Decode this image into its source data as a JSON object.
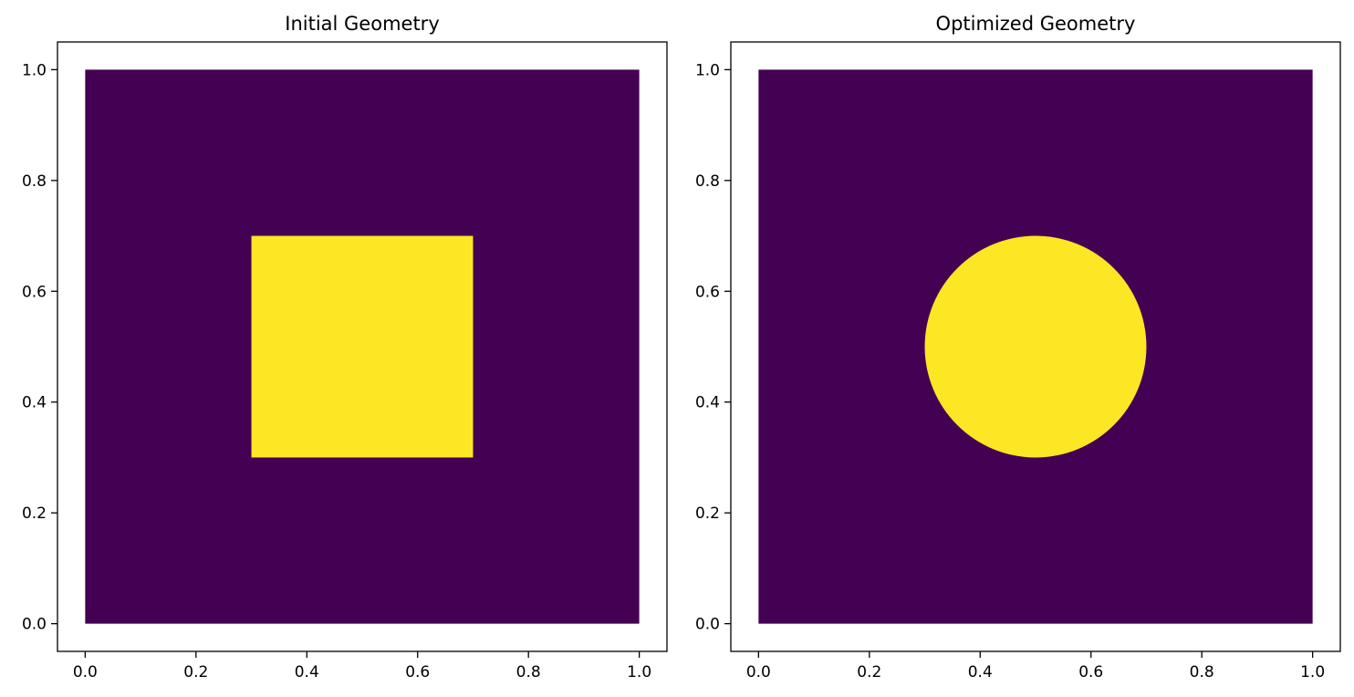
{
  "chart_data": [
    {
      "type": "heatmap",
      "title": "Initial Geometry",
      "xlim": [
        -0.05,
        1.05
      ],
      "ylim": [
        -0.05,
        1.05
      ],
      "extent": [
        0.0,
        1.0,
        0.0,
        1.0
      ],
      "xticks": [
        0.0,
        0.2,
        0.4,
        0.6,
        0.8,
        1.0
      ],
      "yticks": [
        0.0,
        0.2,
        0.4,
        0.6,
        0.8,
        1.0
      ],
      "xtick_labels": [
        "0.0",
        "0.2",
        "0.4",
        "0.6",
        "0.8",
        "1.0"
      ],
      "ytick_labels": [
        "0.0",
        "0.2",
        "0.4",
        "0.6",
        "0.8",
        "1.0"
      ],
      "background_value": 0,
      "shape": {
        "kind": "square",
        "x_range": [
          0.3,
          0.7
        ],
        "y_range": [
          0.3,
          0.7
        ],
        "value": 1
      },
      "colors": {
        "low": "#440154",
        "high": "#fde725"
      }
    },
    {
      "type": "heatmap",
      "title": "Optimized Geometry",
      "xlim": [
        -0.05,
        1.05
      ],
      "ylim": [
        -0.05,
        1.05
      ],
      "extent": [
        0.0,
        1.0,
        0.0,
        1.0
      ],
      "xticks": [
        0.0,
        0.2,
        0.4,
        0.6,
        0.8,
        1.0
      ],
      "yticks": [
        0.0,
        0.2,
        0.4,
        0.6,
        0.8,
        1.0
      ],
      "xtick_labels": [
        "0.0",
        "0.2",
        "0.4",
        "0.6",
        "0.8",
        "1.0"
      ],
      "ytick_labels": [
        "0.0",
        "0.2",
        "0.4",
        "0.6",
        "0.8",
        "1.0"
      ],
      "background_value": 0,
      "shape": {
        "kind": "circle",
        "center": [
          0.5,
          0.5
        ],
        "radius": 0.2,
        "value": 1
      },
      "colors": {
        "low": "#440154",
        "high": "#fde725"
      }
    }
  ]
}
